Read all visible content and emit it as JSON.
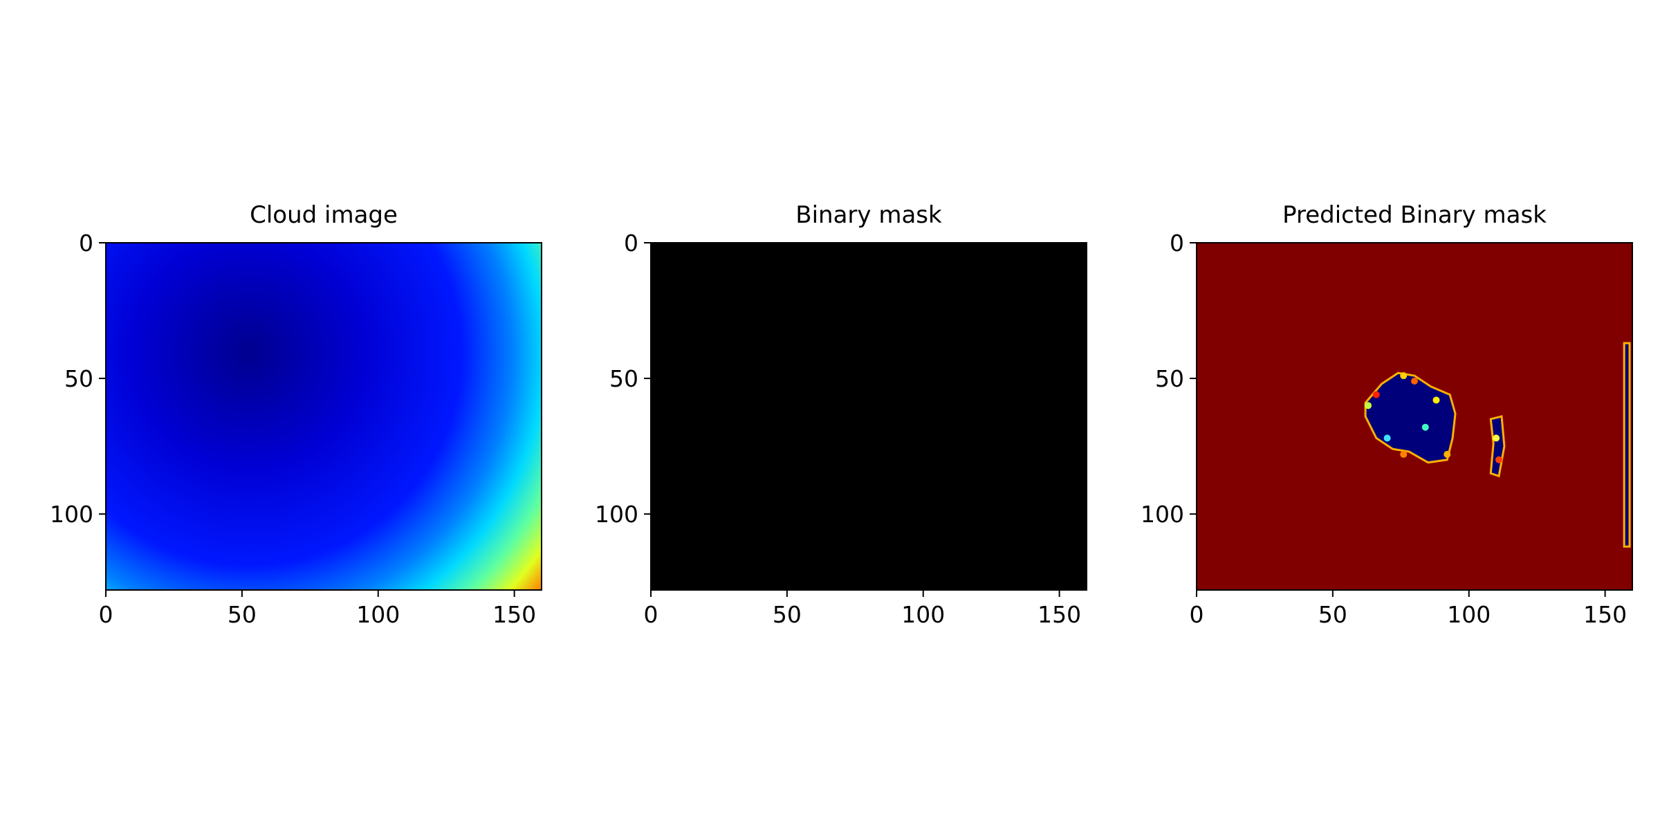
{
  "figure": {
    "background": "#ffffff"
  },
  "chart_data": [
    {
      "type": "heatmap",
      "title": "Cloud image",
      "xlabel": "",
      "ylabel": "",
      "image_shape": [
        128,
        160
      ],
      "xlim": [
        0,
        160
      ],
      "ylim": [
        128,
        0
      ],
      "xticks": [
        0,
        50,
        100,
        150
      ],
      "yticks": [
        0,
        50,
        100
      ],
      "colormap": "jet",
      "description_values": {
        "min_center": [
          58,
          60
        ],
        "max_corner": "top-right"
      }
    },
    {
      "type": "heatmap",
      "title": "Binary mask",
      "xlabel": "",
      "ylabel": "",
      "image_shape": [
        128,
        160
      ],
      "xlim": [
        0,
        160
      ],
      "ylim": [
        128,
        0
      ],
      "xticks": [
        0,
        50,
        100,
        150
      ],
      "yticks": [
        0,
        50,
        100
      ],
      "colormap": "gray",
      "fill_color": "#000000",
      "uniform_value": 0
    },
    {
      "type": "heatmap",
      "title": "Predicted Binary mask",
      "xlabel": "",
      "ylabel": "",
      "image_shape": [
        128,
        160
      ],
      "xlim": [
        0,
        160
      ],
      "ylim": [
        128,
        0
      ],
      "xticks": [
        0,
        50,
        100,
        150
      ],
      "yticks": [
        0,
        50,
        100
      ],
      "colormap": "jet",
      "background_color": "#800000",
      "regions": [
        {
          "name": "blob",
          "points": [
            [
              62,
              59
            ],
            [
              68,
              52
            ],
            [
              74,
              48
            ],
            [
              80,
              49
            ],
            [
              86,
              53
            ],
            [
              93,
              56
            ],
            [
              95,
              63
            ],
            [
              94,
              72
            ],
            [
              92,
              80
            ],
            [
              85,
              81
            ],
            [
              78,
              77
            ],
            [
              72,
              76
            ],
            [
              66,
              72
            ],
            [
              62,
              64
            ]
          ]
        },
        {
          "name": "streak-1",
          "points": [
            [
              108,
              65
            ],
            [
              112,
              64
            ],
            [
              113,
              75
            ],
            [
              111,
              86
            ],
            [
              108,
              85
            ],
            [
              109,
              74
            ]
          ]
        },
        {
          "name": "streak-2",
          "points": [
            [
              157,
              37
            ],
            [
              159,
              37
            ],
            [
              159,
              112
            ],
            [
              157,
              112
            ]
          ]
        }
      ],
      "accents": [
        {
          "x": 66,
          "y": 56,
          "color": "#ff2000"
        },
        {
          "x": 76,
          "y": 49,
          "color": "#ffd000"
        },
        {
          "x": 80,
          "y": 51,
          "color": "#ff6000"
        },
        {
          "x": 88,
          "y": 58,
          "color": "#ffee00"
        },
        {
          "x": 84,
          "y": 68,
          "color": "#40ffc0"
        },
        {
          "x": 70,
          "y": 72,
          "color": "#40e0ff"
        },
        {
          "x": 63,
          "y": 60,
          "color": "#c0ff40"
        },
        {
          "x": 92,
          "y": 78,
          "color": "#ffb000"
        },
        {
          "x": 76,
          "y": 78,
          "color": "#ff8000"
        },
        {
          "x": 110,
          "y": 72,
          "color": "#ffff40"
        },
        {
          "x": 111,
          "y": 80,
          "color": "#ff4000"
        }
      ]
    }
  ]
}
